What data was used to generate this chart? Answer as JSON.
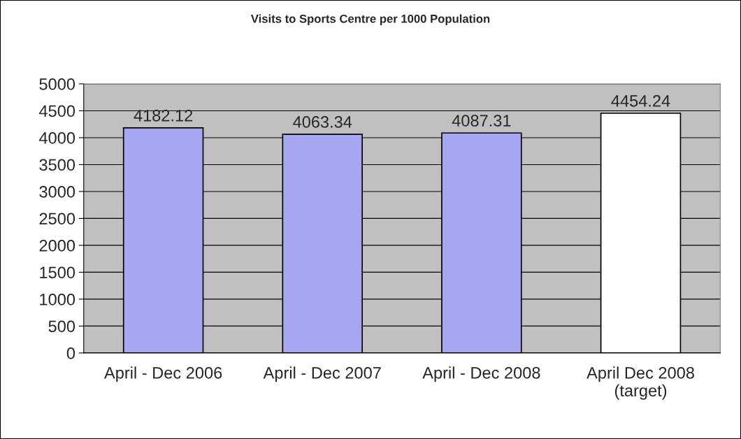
{
  "chart_data": {
    "type": "bar",
    "title": "Visits to Sports Centre per 1000 Population",
    "categories": [
      "April - Dec 2006",
      "April - Dec 2007",
      "April - Dec 2008",
      "April Dec 2008\n(target)"
    ],
    "values": [
      4182.12,
      4063.34,
      4087.31,
      4454.24
    ],
    "colors": [
      "#9999ff",
      "#9999ff",
      "#9999ff",
      "#ffffff"
    ],
    "ylim": [
      0,
      5000
    ],
    "yticks": [
      0,
      500,
      1000,
      1500,
      2000,
      2500,
      3000,
      3500,
      4000,
      4500,
      5000
    ],
    "grid": "y",
    "data_labels": true
  }
}
